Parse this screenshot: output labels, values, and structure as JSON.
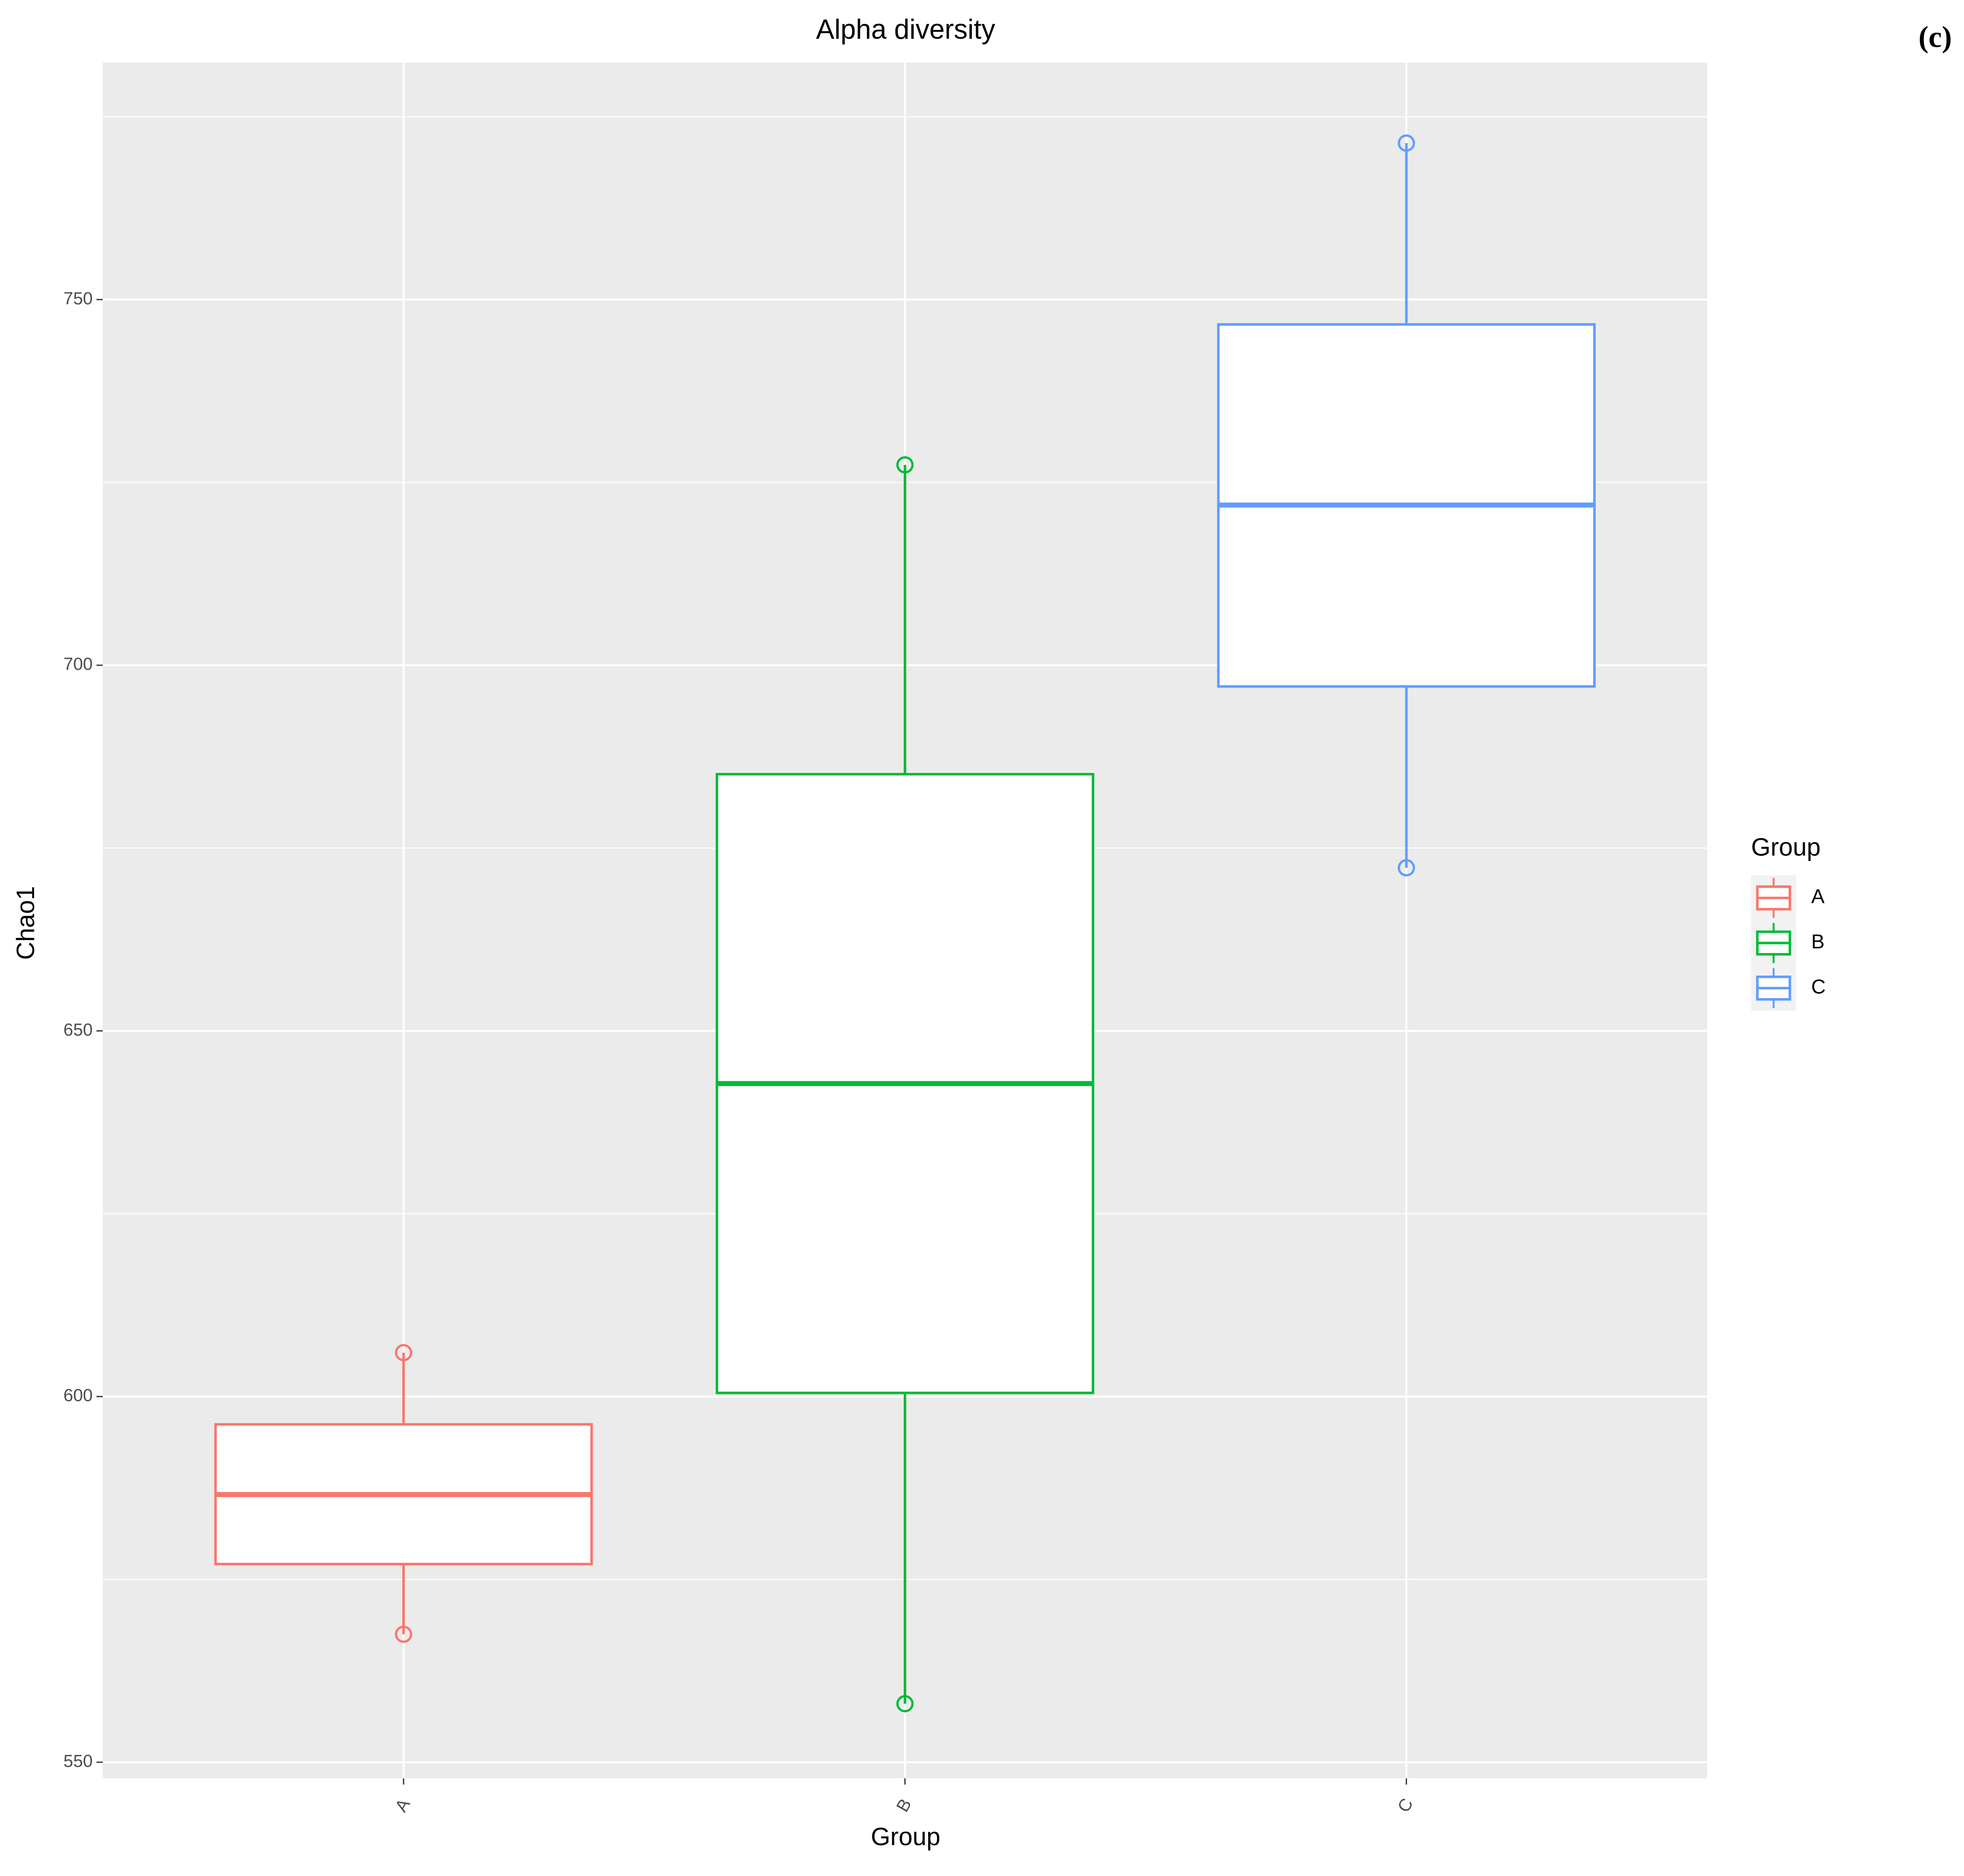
{
  "chart_data": {
    "type": "boxplot",
    "title": "Alpha diversity",
    "tag": "(c)",
    "x_label": "Group",
    "y_label": "Chao1",
    "legend_title": "Group",
    "categories": [
      "A",
      "B",
      "C"
    ],
    "boxes": [
      {
        "name": "A",
        "color": "#F8766D",
        "min": 567.5,
        "q1": 577.1,
        "median": 586.6,
        "q3": 596.2,
        "max": 606.0
      },
      {
        "name": "B",
        "color": "#00BA38",
        "min": 558.0,
        "q1": 600.5,
        "median": 642.8,
        "q3": 685.1,
        "max": 727.4
      },
      {
        "name": "C",
        "color": "#619CFF",
        "min": 672.3,
        "q1": 697.1,
        "median": 721.9,
        "q3": 746.6,
        "max": 771.4
      }
    ],
    "ylim": [
      547.8,
      782.4
    ],
    "yticks": [
      550,
      600,
      650,
      700,
      750
    ],
    "minor_grid": [
      575,
      625,
      675,
      725,
      775
    ],
    "grid": true,
    "legend_position": "right"
  }
}
